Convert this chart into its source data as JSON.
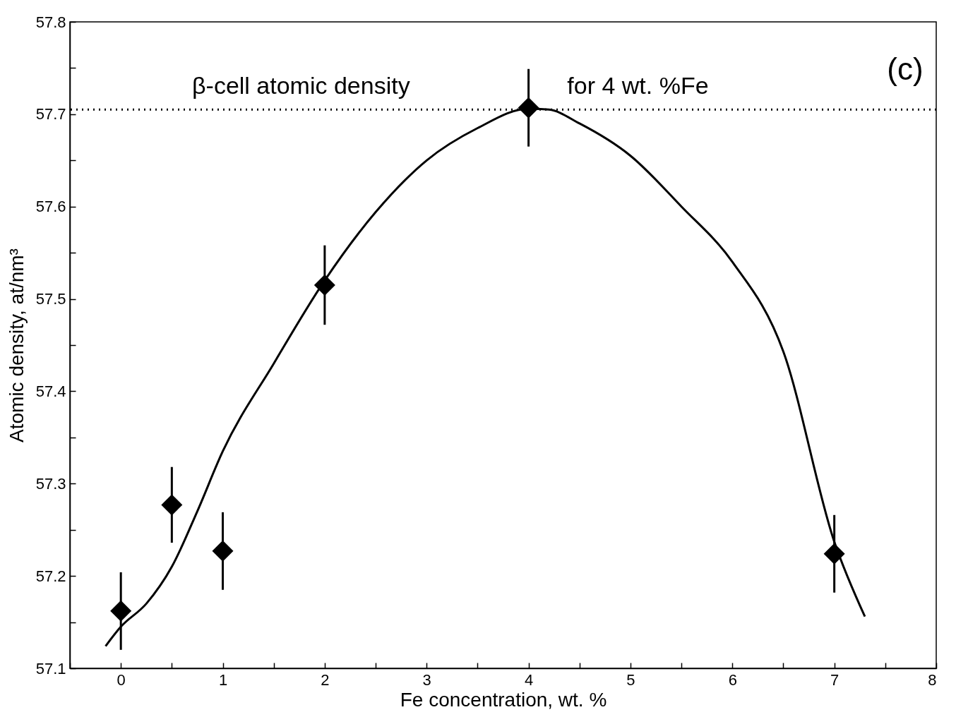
{
  "chart_data": {
    "type": "scatter",
    "xlabel": "Fe concentration, wt. %",
    "ylabel": "Atomic density, at/nm³",
    "xlim": [
      -0.5,
      8
    ],
    "ylim": [
      57.1,
      57.8
    ],
    "xticks": [
      {
        "value": -0.5,
        "label": null
      },
      0,
      {
        "value": 0.5,
        "label": null
      },
      1,
      {
        "value": 1.5,
        "label": null
      },
      2,
      {
        "value": 2.5,
        "label": null
      },
      3,
      {
        "value": 3.5,
        "label": null
      },
      4,
      {
        "value": 4.5,
        "label": null
      },
      5,
      {
        "value": 5.5,
        "label": null
      },
      6,
      {
        "value": 6.5,
        "label": null
      },
      7,
      {
        "value": 7.5,
        "label": null
      },
      8
    ],
    "yticks": [
      57.1,
      {
        "value": 57.15,
        "label": null
      },
      57.2,
      {
        "value": 57.25,
        "label": null
      },
      57.3,
      {
        "value": 57.35,
        "label": null
      },
      57.4,
      {
        "value": 57.45,
        "label": null
      },
      57.5,
      {
        "value": 57.55,
        "label": null
      },
      57.6,
      {
        "value": 57.65,
        "label": null
      },
      57.7,
      {
        "value": 57.75,
        "label": null
      },
      57.8
    ],
    "grid": false,
    "series": [
      {
        "color": "#000000",
        "marker": "diamond",
        "x": [
          0,
          0.5,
          1,
          2,
          4,
          7
        ],
        "values": [
          57.162,
          57.277,
          57.227,
          57.515,
          57.707,
          57.224
        ],
        "errors": [
          0.042,
          0.041,
          0.042,
          0.043,
          0.042,
          0.042
        ]
      },
      {
        "type": "line",
        "color": "#000000",
        "marker": "none",
        "line_style": "solid",
        "x": [
          -0.15,
          0,
          0.25,
          0.5,
          0.75,
          1,
          1.5,
          2,
          2.5,
          3,
          3.5,
          4,
          4.2,
          4.5,
          5,
          5.5,
          6,
          6.5,
          7,
          7.3
        ],
        "values": [
          57.124,
          57.145,
          57.17,
          57.21,
          57.27,
          57.335,
          57.43,
          57.52,
          57.594,
          57.65,
          57.685,
          57.706,
          57.705,
          57.69,
          57.655,
          57.6,
          57.54,
          57.443,
          57.237,
          57.156
        ]
      }
    ],
    "ref_lines": [
      {
        "axis": "y",
        "value": 57.705,
        "color": "#000000",
        "line_style": "dotted"
      }
    ],
    "annotations": [
      "β-cell atomic density",
      "for 4 wt. %Fe",
      "(c)"
    ]
  }
}
